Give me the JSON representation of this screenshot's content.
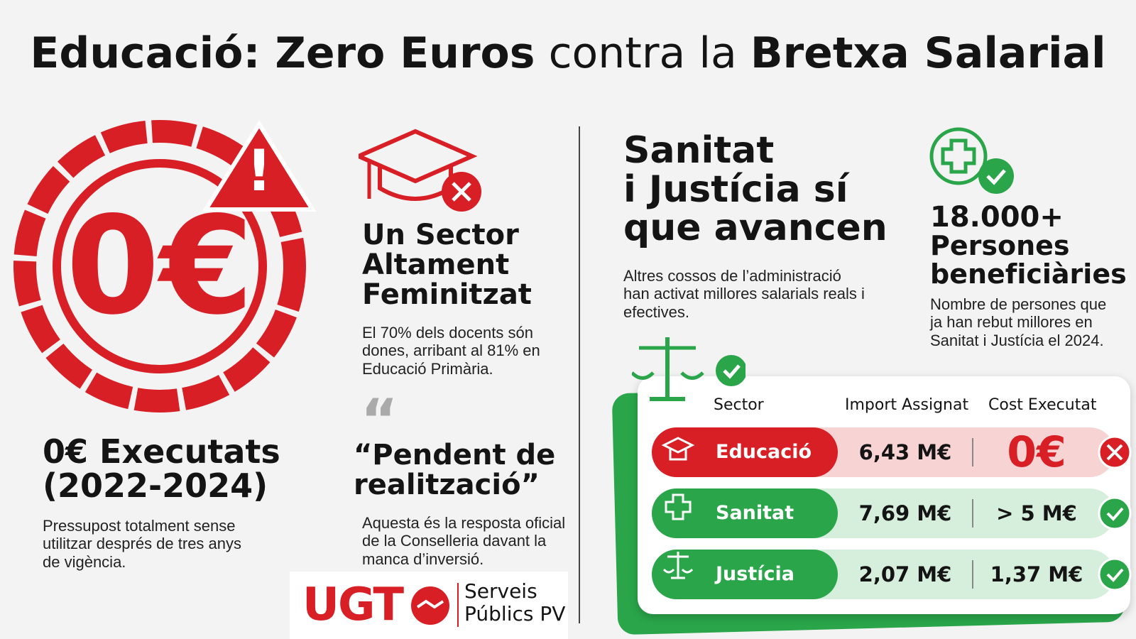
{
  "header": {
    "title_bold_1": "Educació: Zero Euros",
    "title_light": "contra la",
    "title_bold_2": "Bretxa Salarial"
  },
  "left": {
    "big_value": "0€",
    "heading_lines": [
      "0€ Executats",
      "(2022-2024)"
    ],
    "body": "Pressupost totalment sense utilitzar després de tres anys de vigència."
  },
  "middle": {
    "heading_lines": [
      "Un Sector",
      "Altament",
      "Feminitzat"
    ],
    "body": "El 70% dels docents són dones, arribant al 81% en Educació Primària.",
    "quote_lines": [
      "“Pendent de",
      "realització”"
    ],
    "quote_body": "Aquesta és la resposta oficial de la Conselleria davant la manca d’inversió."
  },
  "right": {
    "heading_lines": [
      "Sanitat",
      "i Justícia sí",
      "que avancen"
    ],
    "body": "Altres cossos de l’administració han activat millores salarials reals i efectives.",
    "stat": "18.000+",
    "stat_label_lines": [
      "Persones",
      "beneficiàries"
    ],
    "stat_body": "Nombre de persones que ja han rebut millores en Sanitat i Justícia el 2024."
  },
  "table": {
    "headers": [
      "Sector",
      "Import Assignat",
      "Cost Executat"
    ],
    "rows": [
      [
        "Educació",
        "6,43 M€",
        "0€"
      ],
      [
        "Sanitat",
        "7,69 M€",
        "> 5 M€"
      ],
      [
        "Justícia",
        "2,07 M€",
        "1,37 M€"
      ]
    ]
  },
  "logo": {
    "brand": "UGT",
    "unit_lines": [
      "Serveis",
      "Públics PV"
    ]
  }
}
